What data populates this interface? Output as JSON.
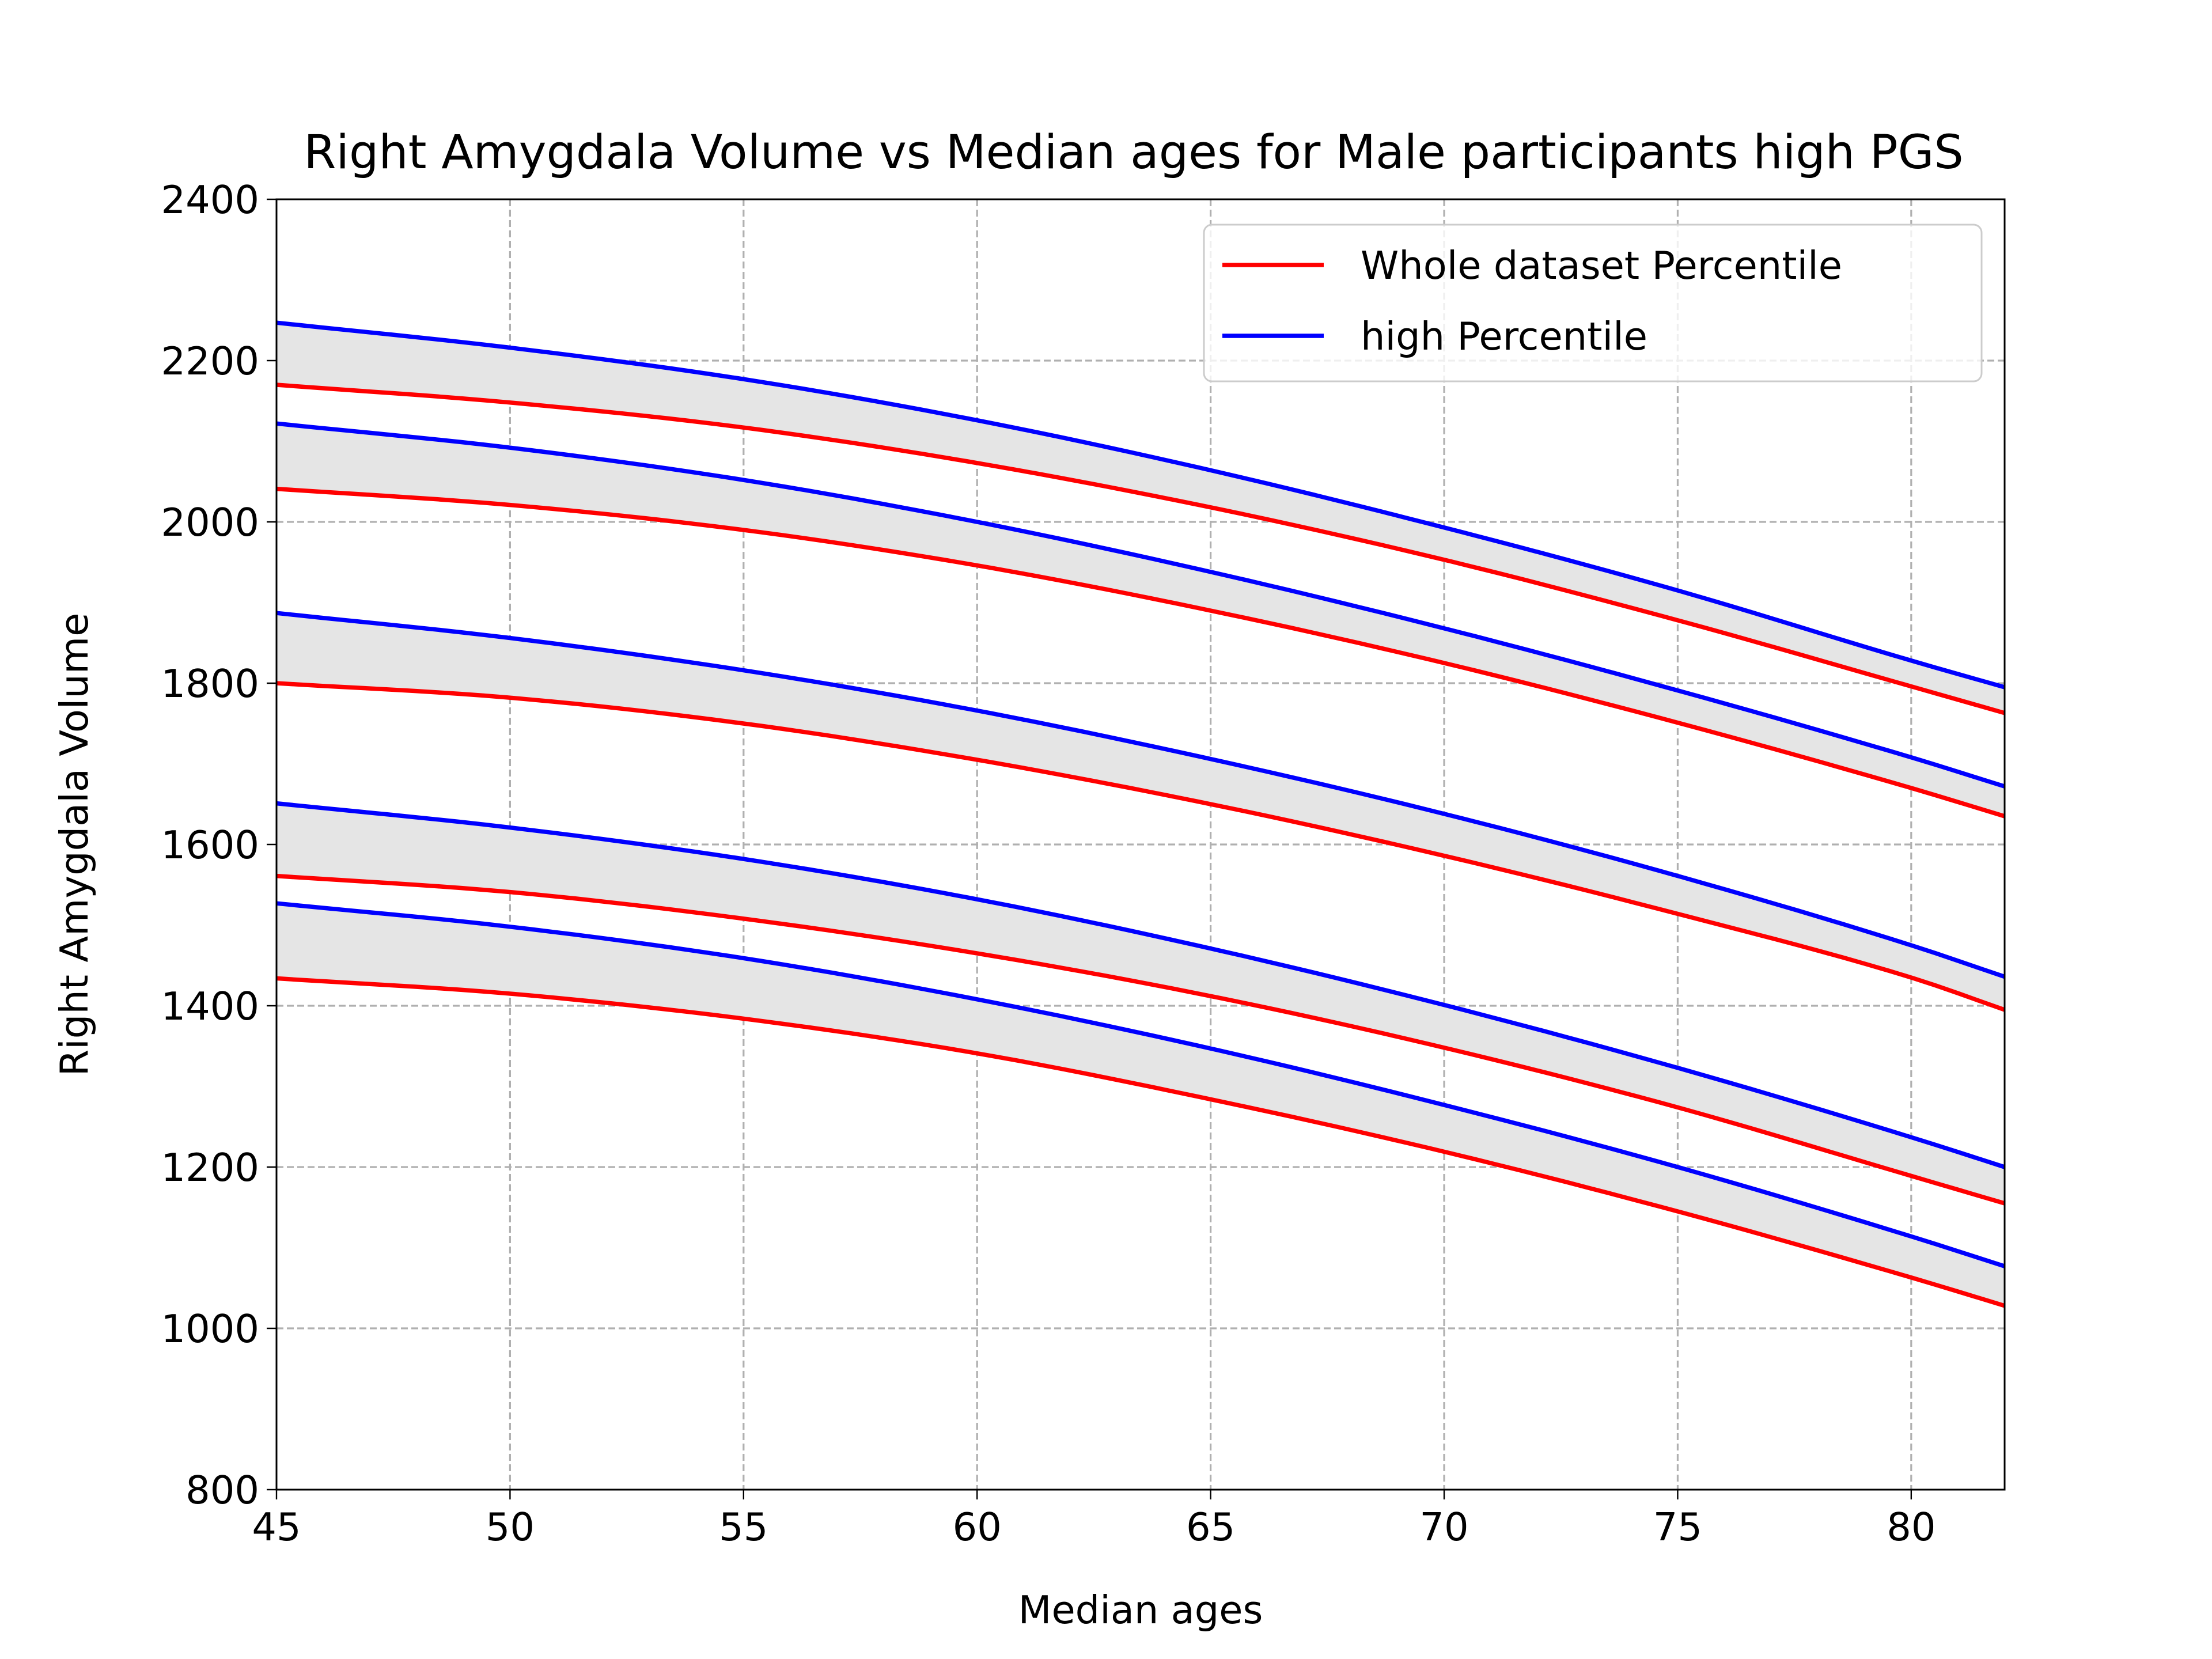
{
  "chart_data": {
    "type": "line",
    "title": "Right Amygdala Volume vs Median ages for Male participants high PGS",
    "xlabel": "Median ages",
    "ylabel": "Right Amygdala Volume",
    "xlim": [
      45,
      82
    ],
    "ylim": [
      800,
      2400
    ],
    "xticks": [
      45,
      50,
      55,
      60,
      65,
      70,
      75,
      80
    ],
    "yticks": [
      800,
      1000,
      1200,
      1400,
      1600,
      1800,
      2000,
      2200,
      2400
    ],
    "grid": true,
    "legend": {
      "placement": "top-right",
      "entries": [
        {
          "label": "Whole dataset Percentile",
          "color": "#ff0000"
        },
        {
          "label": "high Percentile",
          "color": "#0000ff"
        }
      ]
    },
    "band_color": "#e5e5e5",
    "x": [
      45,
      50,
      55,
      60,
      65,
      70,
      75,
      80,
      82
    ],
    "series": [
      {
        "group": "Whole dataset Percentile",
        "color": "#ff0000",
        "values": [
          2170,
          2148,
          2117,
          2073,
          2018,
          1953,
          1878,
          1796,
          1763
        ]
      },
      {
        "group": "high Percentile",
        "color": "#0000ff",
        "values": [
          2247,
          2216,
          2177,
          2126,
          2064,
          1993,
          1915,
          1828,
          1795
        ]
      },
      {
        "group": "Whole dataset Percentile",
        "color": "#ff0000",
        "values": [
          2041,
          2021,
          1990,
          1946,
          1890,
          1825,
          1751,
          1670,
          1635
        ]
      },
      {
        "group": "high Percentile",
        "color": "#0000ff",
        "values": [
          2122,
          2092,
          2052,
          2000,
          1938,
          1868,
          1791,
          1708,
          1672
        ]
      },
      {
        "group": "Whole dataset Percentile",
        "color": "#ff0000",
        "values": [
          1800,
          1782,
          1750,
          1705,
          1650,
          1586,
          1514,
          1435,
          1395
        ]
      },
      {
        "group": "high Percentile",
        "color": "#0000ff",
        "values": [
          1887,
          1856,
          1816,
          1766,
          1706,
          1638,
          1561,
          1475,
          1436
        ]
      },
      {
        "group": "Whole dataset Percentile",
        "color": "#ff0000",
        "values": [
          1561,
          1541,
          1508,
          1465,
          1412,
          1348,
          1274,
          1189,
          1155
        ]
      },
      {
        "group": "high Percentile",
        "color": "#0000ff",
        "values": [
          1651,
          1621,
          1582,
          1532,
          1471,
          1401,
          1323,
          1237,
          1200
        ]
      },
      {
        "group": "Whole dataset Percentile",
        "color": "#ff0000",
        "values": [
          1434,
          1415,
          1384,
          1341,
          1284,
          1219,
          1145,
          1063,
          1028
        ]
      },
      {
        "group": "high Percentile",
        "color": "#0000ff",
        "values": [
          1527,
          1498,
          1459,
          1408,
          1347,
          1277,
          1200,
          1114,
          1077
        ]
      }
    ],
    "bands": [
      [
        0,
        1
      ],
      [
        2,
        3
      ],
      [
        4,
        5
      ],
      [
        6,
        7
      ],
      [
        8,
        9
      ]
    ]
  }
}
